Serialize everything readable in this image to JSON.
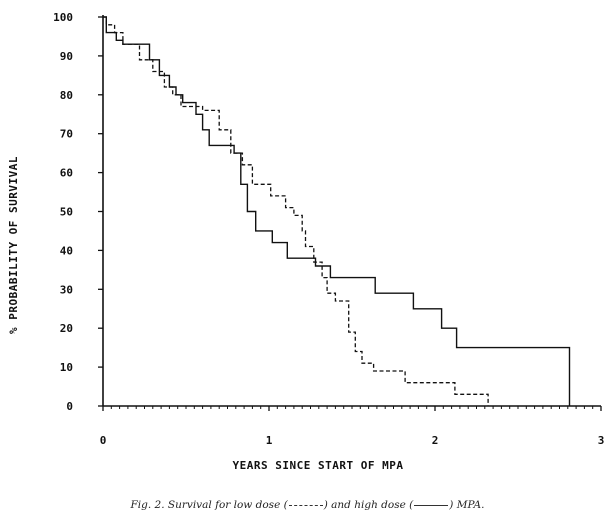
{
  "chart_data": {
    "type": "line",
    "title": "",
    "xlabel": "YEARS SINCE START OF MPA",
    "ylabel": "% PROBABILITY OF SURVIVAL",
    "xlim": [
      0,
      3
    ],
    "ylim": [
      0,
      100
    ],
    "x_ticks": [
      "0",
      "1",
      "2",
      "3"
    ],
    "y_ticks": [
      "0",
      "10",
      "20",
      "30",
      "40",
      "50",
      "60",
      "70",
      "80",
      "90",
      "100"
    ],
    "grid": false,
    "legend": "caption",
    "series": [
      {
        "id": "low",
        "style": "dashed",
        "x": [
          0,
          0.02,
          0.07,
          0.12,
          0.22,
          0.3,
          0.37,
          0.42,
          0.47,
          0.6,
          0.7,
          0.77,
          0.84,
          0.9,
          1.01,
          1.1,
          1.15,
          1.2,
          1.22,
          1.27,
          1.32,
          1.35,
          1.4,
          1.48,
          1.52,
          1.56,
          1.63,
          1.82,
          2.12,
          2.32
        ],
        "y": [
          100,
          98,
          96,
          93,
          89,
          86,
          82,
          80,
          77,
          76,
          71,
          65,
          62,
          57,
          54,
          51,
          49,
          45,
          41,
          37,
          33,
          29,
          27,
          19,
          14,
          11,
          9,
          6,
          3,
          0
        ]
      },
      {
        "id": "high",
        "style": "solid",
        "x": [
          0,
          0.02,
          0.08,
          0.12,
          0.16,
          0.28,
          0.34,
          0.4,
          0.44,
          0.48,
          0.56,
          0.6,
          0.64,
          0.79,
          0.83,
          0.87,
          0.92,
          1.02,
          1.11,
          1.28,
          1.37,
          1.64,
          1.87,
          2.04,
          2.13,
          2.8,
          2.81
        ],
        "y": [
          100,
          96,
          94,
          93,
          93,
          89,
          85,
          82,
          80,
          78,
          75,
          71,
          67,
          65,
          57,
          50,
          45,
          42,
          38,
          36,
          33,
          29,
          25,
          20,
          15,
          15,
          0
        ]
      }
    ]
  },
  "caption": {
    "prefix": "Fig. 2.  Survival for low dose (",
    "middle": ") and high dose (",
    "suffix": ") MPA."
  },
  "colors": {
    "ink": "#111111",
    "background": "#ffffff"
  }
}
